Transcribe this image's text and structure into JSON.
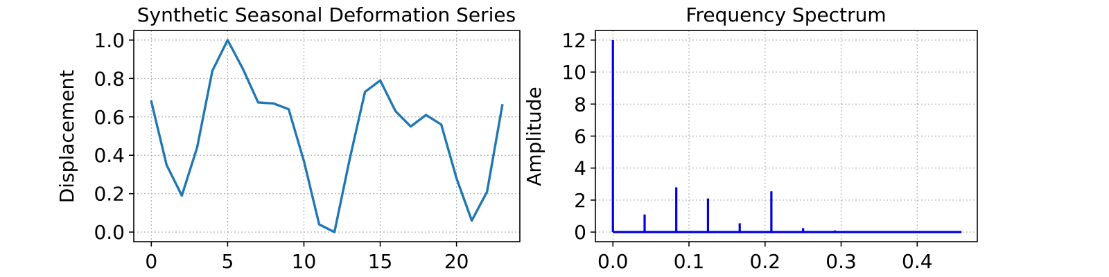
{
  "chart_data": [
    {
      "type": "line",
      "title": "Synthetic Seasonal Deformation Series",
      "xlabel": "",
      "ylabel": "Displacement",
      "xlim": [
        -1.15,
        24.15
      ],
      "ylim": [
        -0.05,
        1.05
      ],
      "xticks": [
        0,
        5,
        10,
        15,
        20
      ],
      "yticks": [
        0.0,
        0.2,
        0.4,
        0.6,
        0.8,
        1.0
      ],
      "xtick_labels": [
        "0",
        "5",
        "10",
        "15",
        "20"
      ],
      "ytick_labels": [
        "0.0",
        "0.2",
        "0.4",
        "0.6",
        "0.8",
        "1.0"
      ],
      "grid": true,
      "color": "#1f77b4",
      "x": [
        0,
        1,
        2,
        3,
        4,
        5,
        6,
        7,
        8,
        9,
        10,
        11,
        12,
        13,
        14,
        15,
        16,
        17,
        18,
        19,
        20,
        21,
        22,
        23
      ],
      "y": [
        0.68,
        0.35,
        0.19,
        0.44,
        0.84,
        1.0,
        0.85,
        0.675,
        0.67,
        0.64,
        0.37,
        0.04,
        0.0,
        0.38,
        0.73,
        0.79,
        0.63,
        0.55,
        0.61,
        0.56,
        0.28,
        0.06,
        0.21,
        0.66
      ]
    },
    {
      "type": "bar",
      "title": "Frequency Spectrum",
      "xlabel": "",
      "ylabel": "Amplitude",
      "xlim": [
        -0.023,
        0.479
      ],
      "ylim": [
        -0.6,
        12.6
      ],
      "xticks": [
        0.0,
        0.1,
        0.2,
        0.3,
        0.4
      ],
      "yticks": [
        0,
        2,
        4,
        6,
        8,
        10,
        12
      ],
      "xtick_labels": [
        "0.0",
        "0.1",
        "0.2",
        "0.3",
        "0.4"
      ],
      "ytick_labels": [
        "0",
        "2",
        "4",
        "6",
        "8",
        "10",
        "12"
      ],
      "grid": true,
      "color": "#0000dd",
      "x_range": [
        0.0,
        0.4583
      ],
      "x": [
        0.0,
        0.0417,
        0.0833,
        0.125,
        0.1667,
        0.2083,
        0.25,
        0.2917
      ],
      "y": [
        12.0,
        1.1,
        2.8,
        2.1,
        0.55,
        2.55,
        0.25,
        0.1
      ]
    }
  ]
}
